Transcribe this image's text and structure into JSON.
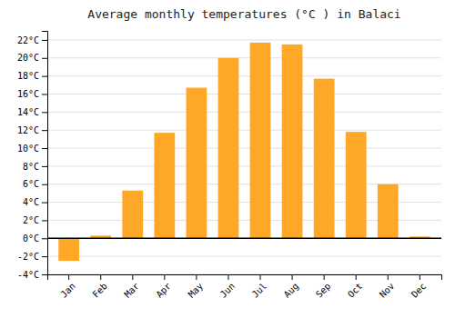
{
  "chart_data": {
    "type": "bar",
    "title": "Average monthly temperatures (°C ) in Balaci",
    "categories": [
      "Jan",
      "Feb",
      "Mar",
      "Apr",
      "May",
      "Jun",
      "Jul",
      "Aug",
      "Sep",
      "Oct",
      "Nov",
      "Dec"
    ],
    "values": [
      -2.5,
      0.3,
      5.3,
      11.7,
      16.7,
      20.0,
      21.7,
      21.5,
      17.7,
      11.8,
      6.0,
      0.2
    ],
    "color": "#FFA726",
    "ylim": [
      -4,
      23
    ],
    "yticks": [
      {
        "value": -4,
        "label": "-4°C"
      },
      {
        "value": -2,
        "label": "-2°C"
      },
      {
        "value": 0,
        "label": "0°C"
      },
      {
        "value": 2,
        "label": "2°C"
      },
      {
        "value": 4,
        "label": "4°C"
      },
      {
        "value": 6,
        "label": "6°C"
      },
      {
        "value": 8,
        "label": "8°C"
      },
      {
        "value": 10,
        "label": "10°C"
      },
      {
        "value": 12,
        "label": "12°C"
      },
      {
        "value": 14,
        "label": "14°C"
      },
      {
        "value": 16,
        "label": "16°C"
      },
      {
        "value": 18,
        "label": "18°C"
      },
      {
        "value": 20,
        "label": "20°C"
      },
      {
        "value": 22,
        "label": "22°C"
      }
    ],
    "grid": true
  }
}
